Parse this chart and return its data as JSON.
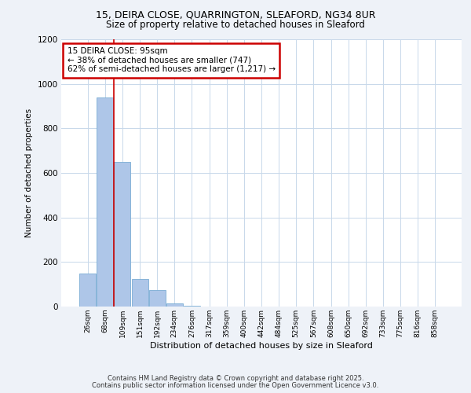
{
  "title_line1": "15, DEIRA CLOSE, QUARRINGTON, SLEAFORD, NG34 8UR",
  "title_line2": "Size of property relative to detached houses in Sleaford",
  "xlabel": "Distribution of detached houses by size in Sleaford",
  "ylabel": "Number of detached properties",
  "bins": [
    "26sqm",
    "68sqm",
    "109sqm",
    "151sqm",
    "192sqm",
    "234sqm",
    "276sqm",
    "317sqm",
    "359sqm",
    "400sqm",
    "442sqm",
    "484sqm",
    "525sqm",
    "567sqm",
    "608sqm",
    "650sqm",
    "692sqm",
    "733sqm",
    "775sqm",
    "816sqm",
    "858sqm"
  ],
  "values": [
    150,
    940,
    650,
    125,
    75,
    15,
    5,
    0,
    0,
    0,
    0,
    0,
    0,
    0,
    0,
    0,
    0,
    0,
    0,
    0,
    0
  ],
  "bar_color": "#aec6e8",
  "bar_edge_color": "#7aadd4",
  "vline_x_pos": 1.5,
  "vline_color": "#cc0000",
  "annotation_text": "15 DEIRA CLOSE: 95sqm\n← 38% of detached houses are smaller (747)\n62% of semi-detached houses are larger (1,217) →",
  "annotation_box_color": "#ffffff",
  "annotation_box_edge_color": "#cc0000",
  "ylim": [
    0,
    1200
  ],
  "yticks": [
    0,
    200,
    400,
    600,
    800,
    1000,
    1200
  ],
  "footer_line1": "Contains HM Land Registry data © Crown copyright and database right 2025.",
  "footer_line2": "Contains public sector information licensed under the Open Government Licence v3.0.",
  "bg_color": "#eef2f8",
  "plot_bg_color": "#ffffff",
  "grid_color": "#c8d8ea"
}
